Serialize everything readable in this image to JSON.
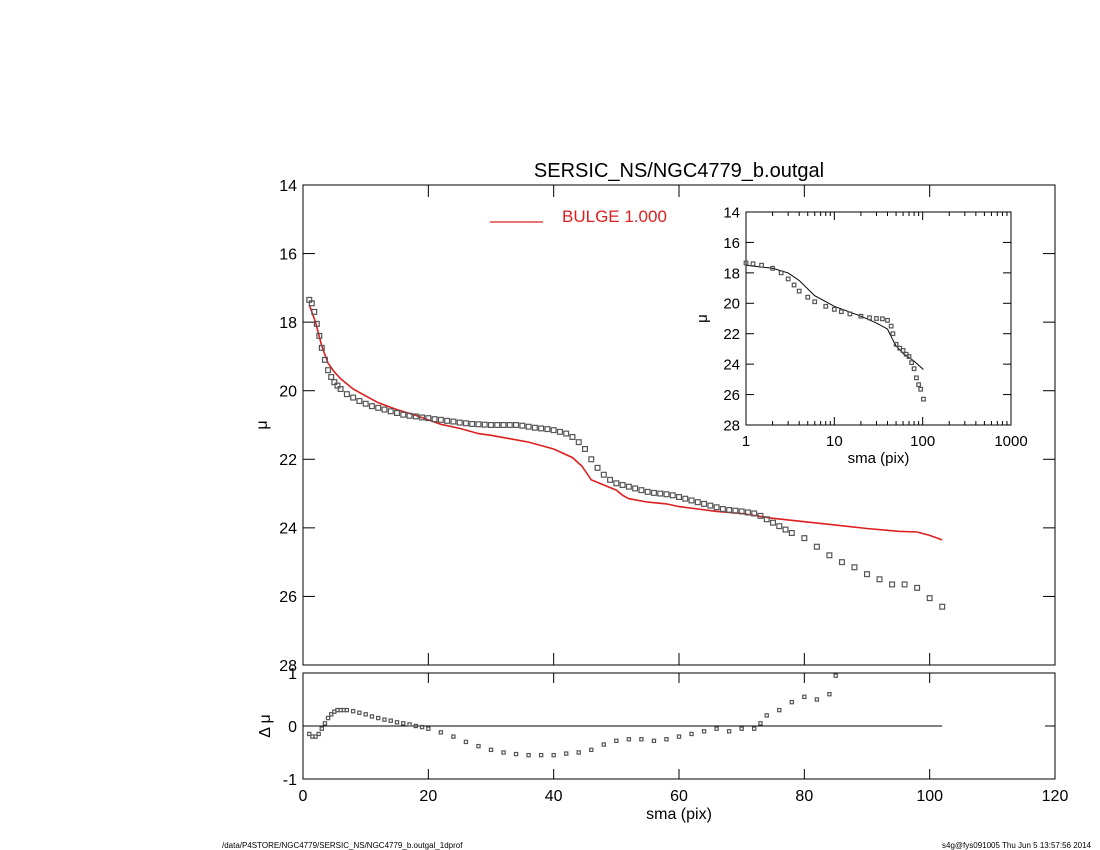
{
  "title": "SERSIC_NS/NGC4779_b.outgal",
  "footer_left": "/data/P4STORE/NGC4779/SERSIC_NS/NGC4779_b.outgal_1dprof",
  "footer_right": "s4g@fys091005  Thu Jun  5 13:57:56 2014",
  "colors": {
    "model": "#dd1f1f",
    "points": "#555555",
    "axis": "#000000"
  },
  "chart_data": [
    {
      "type": "scatter",
      "panel": "main",
      "xlabel": "",
      "ylabel": "μ",
      "xlim": [
        0,
        120
      ],
      "ylim": [
        28,
        14
      ],
      "xticks": [
        0,
        20,
        40,
        60,
        80,
        100,
        120
      ],
      "yticks": [
        14,
        16,
        18,
        20,
        22,
        24,
        26,
        28
      ],
      "legend": {
        "label": "BULGE  1.000",
        "position": "top-center"
      },
      "series": [
        {
          "name": "BULGE  1.000",
          "style": "line",
          "x": [
            1.0,
            2.0,
            3.0,
            4.0,
            5.0,
            6.0,
            8.0,
            10.0,
            12.0,
            15.0,
            18.0,
            20.0,
            22.0,
            25.0,
            28.0,
            30.0,
            33.0,
            36.0,
            40.0,
            43.0,
            44.5,
            46.0,
            48.0,
            50.0,
            51.0,
            52.0,
            55.0,
            58.0,
            60.0,
            63.0,
            66.0,
            70.0,
            75.0,
            80.0,
            85.0,
            90.0,
            95.0,
            98.0,
            100.0,
            102.0
          ],
          "y": [
            17.5,
            18.0,
            18.7,
            19.2,
            19.45,
            19.65,
            19.95,
            20.15,
            20.35,
            20.55,
            20.72,
            20.85,
            20.98,
            21.1,
            21.25,
            21.3,
            21.4,
            21.5,
            21.7,
            21.95,
            22.2,
            22.6,
            22.75,
            22.9,
            23.05,
            23.15,
            23.25,
            23.3,
            23.38,
            23.45,
            23.52,
            23.58,
            23.72,
            23.82,
            23.92,
            24.02,
            24.1,
            24.12,
            24.22,
            24.35
          ]
        },
        {
          "name": "",
          "style": "markers",
          "x": [
            1.0,
            1.4,
            1.8,
            2.2,
            2.6,
            3.0,
            3.5,
            4.0,
            4.5,
            5.0,
            5.5,
            6.0,
            7.0,
            8.0,
            9.0,
            10.0,
            11.0,
            12.0,
            13.0,
            14.0,
            15.0,
            16.0,
            17.0,
            18.0,
            19.0,
            20.0,
            21.0,
            22.0,
            23.0,
            24.0,
            25.0,
            26.0,
            27.0,
            28.0,
            29.0,
            30.0,
            31.0,
            32.0,
            33.0,
            34.0,
            35.0,
            36.0,
            37.0,
            38.0,
            39.0,
            40.0,
            41.0,
            42.0,
            43.0,
            44.0,
            45.0,
            46.0,
            47.0,
            48.0,
            49.0,
            50.0,
            51.0,
            52.0,
            53.0,
            54.0,
            55.0,
            56.0,
            57.0,
            58.0,
            59.0,
            60.0,
            61.0,
            62.0,
            63.0,
            64.0,
            65.0,
            66.0,
            67.0,
            68.0,
            69.0,
            70.0,
            71.0,
            72.0,
            73.0,
            74.0,
            75.0,
            76.0,
            77.0,
            78.0,
            80.0,
            82.0,
            84.0,
            86.0,
            88.0,
            90.0,
            92.0,
            94.0,
            96.0,
            98.0,
            100.0,
            102.0
          ],
          "y": [
            17.35,
            17.45,
            17.7,
            18.05,
            18.4,
            18.75,
            19.1,
            19.4,
            19.6,
            19.75,
            19.85,
            19.95,
            20.1,
            20.2,
            20.3,
            20.38,
            20.45,
            20.5,
            20.55,
            20.6,
            20.65,
            20.7,
            20.73,
            20.75,
            20.78,
            20.8,
            20.83,
            20.85,
            20.88,
            20.9,
            20.93,
            20.95,
            20.97,
            20.98,
            20.99,
            21.0,
            21.0,
            21.0,
            21.0,
            21.0,
            21.02,
            21.05,
            21.08,
            21.1,
            21.12,
            21.15,
            21.2,
            21.25,
            21.35,
            21.5,
            21.7,
            22.0,
            22.25,
            22.45,
            22.6,
            22.7,
            22.75,
            22.8,
            22.85,
            22.9,
            22.95,
            22.98,
            23.0,
            23.02,
            23.05,
            23.1,
            23.15,
            23.2,
            23.25,
            23.3,
            23.35,
            23.4,
            23.45,
            23.48,
            23.5,
            23.52,
            23.55,
            23.58,
            23.65,
            23.75,
            23.85,
            23.95,
            24.05,
            24.15,
            24.3,
            24.55,
            24.8,
            25.0,
            25.15,
            25.35,
            25.5,
            25.65,
            25.65,
            25.75,
            26.05,
            26.3
          ]
        }
      ]
    },
    {
      "type": "scatter",
      "panel": "residual",
      "xlabel": "sma (pix)",
      "ylabel": "Δ μ",
      "xlim": [
        0,
        120
      ],
      "ylim": [
        -1,
        1
      ],
      "xticks": [
        0,
        20,
        40,
        60,
        80,
        100,
        120
      ],
      "yticks": [
        1,
        0,
        -1
      ],
      "zero_line": [
        0,
        102
      ],
      "series": [
        {
          "name": "",
          "style": "markers",
          "x": [
            1.0,
            1.5,
            2.0,
            2.5,
            3.0,
            3.5,
            4.0,
            4.5,
            5.0,
            5.5,
            6.0,
            6.5,
            7.0,
            8.0,
            9.0,
            10.0,
            11.0,
            12.0,
            13.0,
            14.0,
            15.0,
            16.0,
            17.0,
            18.0,
            19.0,
            20.0,
            22.0,
            24.0,
            26.0,
            28.0,
            30.0,
            32.0,
            34.0,
            36.0,
            38.0,
            40.0,
            42.0,
            44.0,
            46.0,
            48.0,
            50.0,
            52.0,
            54.0,
            56.0,
            58.0,
            60.0,
            62.0,
            64.0,
            66.0,
            68.0,
            70.0,
            72.0,
            73.0,
            74.0,
            76.0,
            78.0,
            80.0,
            82.0,
            84.0,
            85.0
          ],
          "y": [
            -0.15,
            -0.2,
            -0.2,
            -0.15,
            -0.05,
            0.05,
            0.15,
            0.22,
            0.27,
            0.3,
            0.3,
            0.3,
            0.3,
            0.28,
            0.25,
            0.22,
            0.18,
            0.15,
            0.12,
            0.1,
            0.07,
            0.05,
            0.03,
            0.0,
            -0.02,
            -0.05,
            -0.12,
            -0.2,
            -0.3,
            -0.38,
            -0.45,
            -0.5,
            -0.53,
            -0.55,
            -0.55,
            -0.55,
            -0.52,
            -0.5,
            -0.45,
            -0.35,
            -0.28,
            -0.25,
            -0.25,
            -0.28,
            -0.25,
            -0.2,
            -0.15,
            -0.1,
            -0.05,
            -0.1,
            -0.05,
            -0.05,
            0.05,
            0.2,
            0.3,
            0.45,
            0.55,
            0.5,
            0.6,
            0.95
          ]
        }
      ]
    },
    {
      "type": "scatter",
      "panel": "inset",
      "xlabel": "sma (pix)",
      "ylabel": "μ",
      "xscale": "log",
      "xlim": [
        1,
        1000
      ],
      "ylim": [
        28,
        14
      ],
      "xticks": [
        1,
        10,
        100,
        1000
      ],
      "yticks": [
        14,
        16,
        18,
        20,
        22,
        24,
        26,
        28
      ],
      "series": [
        {
          "name": "",
          "style": "line",
          "x": [
            1.0,
            2.0,
            3.0,
            4.0,
            6.0,
            10.0,
            20.0,
            30.0,
            40.0,
            45.0,
            50.0,
            60.0,
            80.0,
            102.0
          ],
          "y": [
            17.5,
            17.7,
            18.0,
            18.5,
            19.5,
            20.2,
            20.85,
            21.3,
            21.7,
            22.3,
            22.8,
            23.3,
            23.8,
            24.35
          ]
        },
        {
          "name": "",
          "style": "markers",
          "x": [
            1.0,
            1.2,
            1.5,
            2.0,
            2.5,
            3.0,
            3.5,
            4.0,
            5.0,
            6.0,
            8.0,
            10.0,
            12.0,
            15.0,
            20.0,
            25.0,
            30.0,
            35.0,
            40.0,
            44.0,
            46.0,
            50.0,
            55.0,
            60.0,
            65.0,
            70.0,
            75.0,
            80.0,
            85.0,
            90.0,
            95.0,
            102.0
          ],
          "y": [
            17.35,
            17.4,
            17.5,
            17.7,
            18.0,
            18.4,
            18.8,
            19.2,
            19.6,
            19.9,
            20.2,
            20.4,
            20.55,
            20.7,
            20.85,
            20.95,
            21.0,
            21.02,
            21.12,
            21.5,
            22.0,
            22.7,
            22.95,
            23.1,
            23.35,
            23.5,
            23.9,
            24.3,
            24.9,
            25.35,
            25.65,
            26.3
          ]
        }
      ]
    }
  ]
}
